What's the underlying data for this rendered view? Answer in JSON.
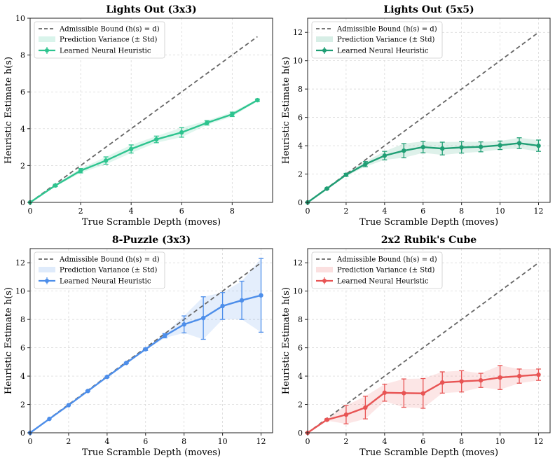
{
  "chart_data": [
    {
      "type": "line",
      "title": "Lights Out (3x3)",
      "xlabel": "True Scramble Depth (moves)",
      "ylabel": "Heuristic Estimate h(s)",
      "xlim": [
        0,
        9.6
      ],
      "ylim": [
        0,
        10
      ],
      "xticks": [
        0,
        2,
        4,
        6,
        8
      ],
      "yticks": [
        0,
        2,
        4,
        6,
        8,
        10
      ],
      "grid": true,
      "legend_position": "top-left",
      "color": "#2ec48f",
      "series": [
        {
          "name": "Admissible Bound (h(s) = d)",
          "x": [
            0,
            9
          ],
          "y": [
            0,
            9
          ]
        },
        {
          "name": "Prediction Variance (± Std)"
        },
        {
          "name": "Learned Neural Heuristic",
          "x": [
            0,
            1,
            2,
            3,
            4,
            5,
            6,
            7,
            8,
            9
          ],
          "y": [
            0.0,
            0.92,
            1.72,
            2.27,
            2.9,
            3.42,
            3.8,
            4.32,
            4.78,
            5.55
          ],
          "err": [
            0.0,
            0.06,
            0.12,
            0.2,
            0.22,
            0.18,
            0.26,
            0.12,
            0.12,
            0.06
          ]
        }
      ]
    },
    {
      "type": "line",
      "title": "Lights Out (5x5)",
      "xlabel": "True Scramble Depth (moves)",
      "ylabel": "Heuristic Estimate h(s)",
      "xlim": [
        0,
        12.6
      ],
      "ylim": [
        0,
        13
      ],
      "xticks": [
        0,
        2,
        4,
        6,
        8,
        10,
        12
      ],
      "yticks": [
        0,
        2,
        4,
        6,
        8,
        10,
        12
      ],
      "grid": true,
      "legend_position": "top-left",
      "color": "#1f9e74",
      "series": [
        {
          "name": "Admissible Bound (h(s) = d)",
          "x": [
            0,
            12
          ],
          "y": [
            0,
            12
          ]
        },
        {
          "name": "Prediction Variance (± Std)"
        },
        {
          "name": "Learned Neural Heuristic",
          "x": [
            0,
            1,
            2,
            3,
            4,
            5,
            6,
            7,
            8,
            9,
            10,
            11,
            12
          ],
          "y": [
            0.0,
            0.97,
            1.95,
            2.7,
            3.3,
            3.65,
            3.9,
            3.8,
            3.88,
            3.92,
            4.03,
            4.18,
            4.0
          ],
          "err": [
            0.0,
            0.04,
            0.1,
            0.18,
            0.3,
            0.5,
            0.4,
            0.45,
            0.4,
            0.35,
            0.3,
            0.38,
            0.4
          ]
        }
      ]
    },
    {
      "type": "line",
      "title": "8-Puzzle (3x3)",
      "xlabel": "True Scramble Depth (moves)",
      "ylabel": "Heuristic Estimate h(s)",
      "xlim": [
        0,
        12.6
      ],
      "ylim": [
        0,
        13
      ],
      "xticks": [
        0,
        2,
        4,
        6,
        8,
        10,
        12
      ],
      "yticks": [
        0,
        2,
        4,
        6,
        8,
        10,
        12
      ],
      "grid": true,
      "legend_position": "top-left",
      "color": "#4d8eea",
      "series": [
        {
          "name": "Admissible Bound (h(s) = d)",
          "x": [
            0,
            12
          ],
          "y": [
            0,
            12
          ]
        },
        {
          "name": "Prediction Variance (± Std)"
        },
        {
          "name": "Learned Neural Heuristic",
          "x": [
            0,
            1,
            2,
            3,
            4,
            5,
            6,
            7,
            8,
            9,
            10,
            11,
            12
          ],
          "y": [
            0.0,
            0.98,
            1.95,
            2.95,
            3.95,
            4.93,
            5.9,
            6.85,
            7.65,
            8.1,
            8.95,
            9.35,
            9.7
          ],
          "err": [
            0.0,
            0.02,
            0.03,
            0.04,
            0.05,
            0.05,
            0.08,
            0.15,
            0.6,
            1.5,
            0.95,
            1.35,
            2.6
          ]
        }
      ]
    },
    {
      "type": "line",
      "title": "2x2 Rubik's Cube",
      "xlabel": "True Scramble Depth (moves)",
      "ylabel": "Heuristic Estimate h(s)",
      "xlim": [
        0,
        12.6
      ],
      "ylim": [
        0,
        13
      ],
      "xticks": [
        0,
        2,
        4,
        6,
        8,
        10,
        12
      ],
      "yticks": [
        0,
        2,
        4,
        6,
        8,
        10,
        12
      ],
      "grid": true,
      "legend_position": "top-left",
      "color": "#e85454",
      "series": [
        {
          "name": "Admissible Bound (h(s) = d)",
          "x": [
            0,
            12
          ],
          "y": [
            0,
            12
          ]
        },
        {
          "name": "Prediction Variance (± Std)"
        },
        {
          "name": "Learned Neural Heuristic",
          "x": [
            0,
            1,
            2,
            3,
            4,
            5,
            6,
            7,
            8,
            9,
            10,
            11,
            12
          ],
          "y": [
            0.0,
            0.92,
            1.28,
            1.78,
            2.83,
            2.8,
            2.78,
            3.55,
            3.63,
            3.7,
            3.9,
            4.0,
            4.1
          ],
          "err": [
            0.0,
            0.06,
            0.65,
            0.8,
            0.6,
            1.0,
            1.05,
            0.75,
            0.75,
            0.5,
            0.85,
            0.5,
            0.4
          ]
        }
      ]
    }
  ]
}
